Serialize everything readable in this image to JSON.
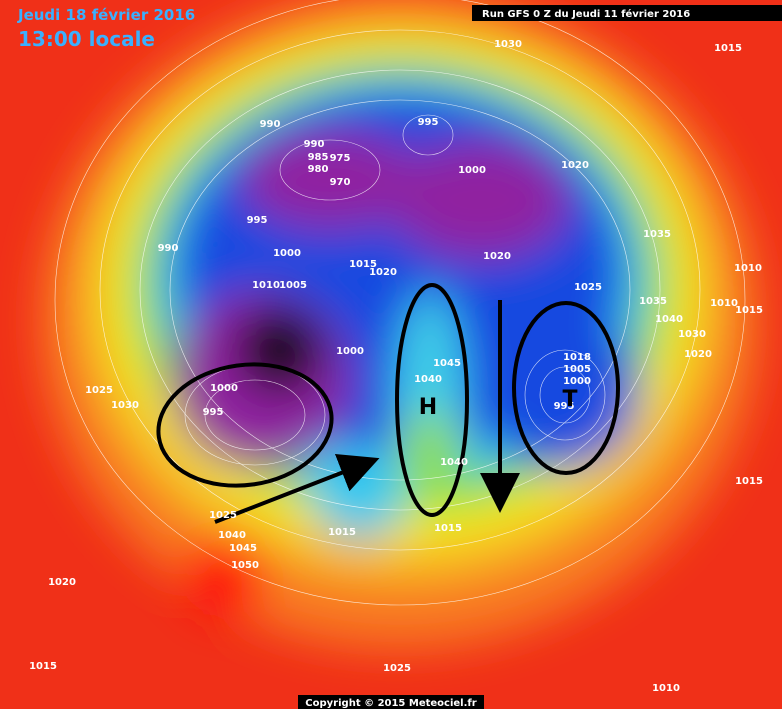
{
  "header": {
    "date": "Jeudi 18 février 2016",
    "time": "13:00 locale",
    "run": "Run GFS 0 Z du Jeudi 11 février 2016"
  },
  "annotations": {
    "high": "H",
    "low": "T"
  },
  "isobar_labels": [
    1030,
    1015,
    990,
    990,
    985,
    975,
    980,
    970,
    995,
    1000,
    1020,
    995,
    990,
    1000,
    1010,
    1005,
    1015,
    1020,
    1020,
    1035,
    1010,
    1025,
    1035,
    1040,
    1010,
    1015,
    1030,
    1020,
    1000,
    1045,
    1040,
    1000,
    995,
    1025,
    1030,
    1018,
    1005,
    1000,
    995,
    1040,
    1015,
    1025,
    1040,
    1045,
    1050,
    1015,
    1015,
    1020,
    1015,
    1025,
    1010
  ],
  "footer": {
    "copyright": "Copyright © 2015 Meteociel.fr"
  }
}
